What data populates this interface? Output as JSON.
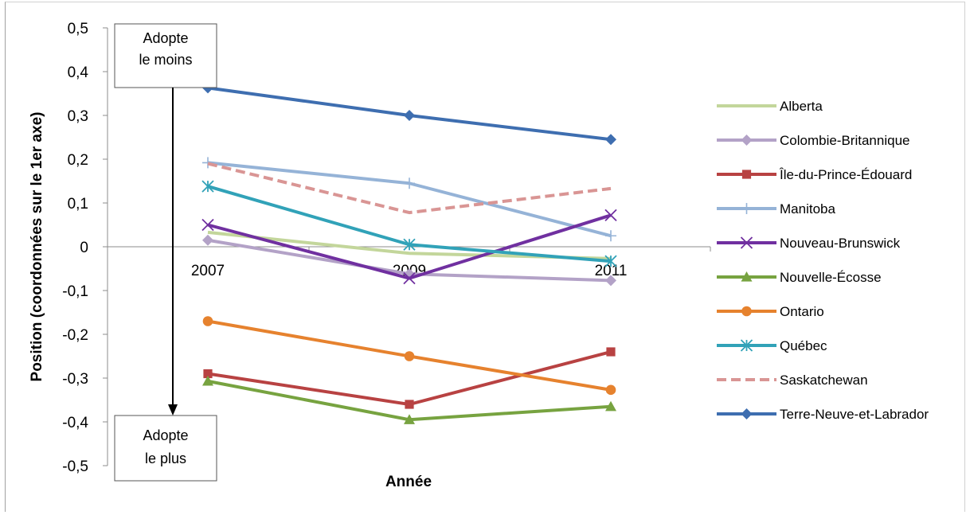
{
  "chart_data": {
    "type": "line",
    "xlabel": "Année",
    "ylabel": "Position (coordonnées sur le 1er axe)",
    "x": [
      "2007",
      "2009",
      "2011"
    ],
    "ylim": [
      -0.5,
      0.5
    ],
    "yticks": [
      "0,5",
      "0,4",
      "0,3",
      "0,2",
      "0,1",
      "0",
      "-0,1",
      "-0,2",
      "-0,3",
      "-0,4",
      "-0,5"
    ],
    "grid": false,
    "legend_position": "right",
    "annotations": {
      "top": [
        "Adopte",
        "le moins"
      ],
      "bottom": [
        "Adopte",
        "le plus"
      ]
    },
    "series": [
      {
        "name": "Alberta",
        "values": [
          0.033,
          -0.015,
          -0.027
        ],
        "color": "#c3d69b",
        "marker": "none",
        "dash": false
      },
      {
        "name": "Colombie-Britannique",
        "values": [
          0.015,
          -0.062,
          -0.077
        ],
        "color": "#b3a2c7",
        "marker": "diamond",
        "dash": false
      },
      {
        "name": "Île-du-Prince-Édouard",
        "values": [
          -0.29,
          -0.36,
          -0.24
        ],
        "color": "#b84242",
        "marker": "square",
        "dash": false
      },
      {
        "name": "Manitoba",
        "values": [
          0.192,
          0.145,
          0.025
        ],
        "color": "#95b3d7",
        "marker": "plus",
        "dash": false
      },
      {
        "name": "Nouveau-Brunswick",
        "values": [
          0.05,
          -0.072,
          0.072
        ],
        "color": "#7030a0",
        "marker": "x",
        "dash": false
      },
      {
        "name": "Nouvelle-Écosse",
        "values": [
          -0.307,
          -0.395,
          -0.365
        ],
        "color": "#77a340",
        "marker": "triangle",
        "dash": false
      },
      {
        "name": "Ontario",
        "values": [
          -0.17,
          -0.25,
          -0.327
        ],
        "color": "#e6822e",
        "marker": "circle",
        "dash": false
      },
      {
        "name": "Québec",
        "values": [
          0.138,
          0.005,
          -0.033
        ],
        "color": "#31a2b8",
        "marker": "star",
        "dash": false
      },
      {
        "name": "Saskatchewan",
        "values": [
          0.19,
          0.078,
          0.133
        ],
        "color": "#d99594",
        "marker": "none",
        "dash": true
      },
      {
        "name": "Terre-Neuve-et-Labrador",
        "values": [
          0.363,
          0.3,
          0.245
        ],
        "color": "#3e6eb0",
        "marker": "diamond",
        "dash": false
      }
    ]
  }
}
